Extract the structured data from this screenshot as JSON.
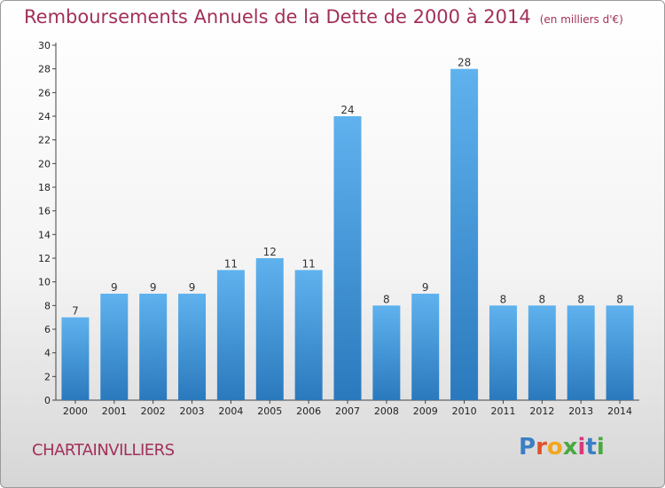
{
  "header": {
    "title": "Remboursements Annuels de la Dette de 2000 à 2014",
    "unit": "(en milliers d'€)"
  },
  "footer": {
    "city": "CHARTAINVILLIERS",
    "logo_text": "Proxiti"
  },
  "colors": {
    "title": "#a2305a",
    "bar_top": "#5fb2ee",
    "bar_bottom": "#2a79bd"
  },
  "chart_data": {
    "type": "bar",
    "title": "Remboursements Annuels de la Dette de 2000 à 2014",
    "xlabel": "",
    "ylabel": "",
    "categories": [
      "2000",
      "2001",
      "2002",
      "2003",
      "2004",
      "2005",
      "2006",
      "2007",
      "2008",
      "2009",
      "2010",
      "2011",
      "2012",
      "2013",
      "2014"
    ],
    "values": [
      7,
      9,
      9,
      9,
      11,
      12,
      11,
      24,
      8,
      9,
      28,
      8,
      8,
      8,
      8
    ],
    "ylim": [
      0,
      30
    ],
    "yticks": [
      0,
      2,
      4,
      6,
      8,
      10,
      12,
      14,
      16,
      18,
      20,
      22,
      24,
      26,
      28,
      30
    ],
    "grid": false,
    "data_labels": true
  }
}
